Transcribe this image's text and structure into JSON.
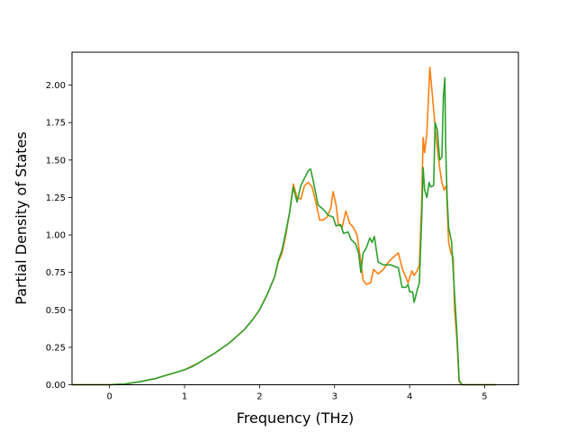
{
  "chart_data": {
    "type": "line",
    "title": "",
    "xlabel": "Frequency (THz)",
    "ylabel": "Partial Density of States",
    "xlim": [
      -0.5,
      5.45
    ],
    "ylim": [
      0,
      2.22
    ],
    "grid": false,
    "legend": "none",
    "x_ticks": [
      0,
      1,
      2,
      3,
      4,
      5
    ],
    "x_tick_labels": [
      "0",
      "1",
      "2",
      "3",
      "4",
      "5"
    ],
    "y_ticks": [
      0.0,
      0.25,
      0.5,
      0.75,
      1.0,
      1.25,
      1.5,
      1.75,
      2.0
    ],
    "y_tick_labels": [
      "0.00",
      "0.25",
      "0.50",
      "0.75",
      "1.00",
      "1.25",
      "1.50",
      "1.75",
      "2.00"
    ],
    "series": [
      {
        "color": "#ff7f0e",
        "points": [
          [
            -0.5,
            0
          ],
          [
            0,
            0
          ],
          [
            0.2,
            0.005
          ],
          [
            0.4,
            0.02
          ],
          [
            0.6,
            0.04
          ],
          [
            0.8,
            0.07
          ],
          [
            1.0,
            0.1
          ],
          [
            1.1,
            0.125
          ],
          [
            1.2,
            0.15
          ],
          [
            1.4,
            0.21
          ],
          [
            1.6,
            0.28
          ],
          [
            1.8,
            0.37
          ],
          [
            1.9,
            0.43
          ],
          [
            2.0,
            0.5
          ],
          [
            2.1,
            0.6
          ],
          [
            2.2,
            0.72
          ],
          [
            2.25,
            0.82
          ],
          [
            2.3,
            0.88
          ],
          [
            2.35,
            1.0
          ],
          [
            2.4,
            1.15
          ],
          [
            2.45,
            1.34
          ],
          [
            2.5,
            1.25
          ],
          [
            2.55,
            1.24
          ],
          [
            2.6,
            1.33
          ],
          [
            2.65,
            1.35
          ],
          [
            2.7,
            1.32
          ],
          [
            2.75,
            1.22
          ],
          [
            2.8,
            1.1
          ],
          [
            2.85,
            1.1
          ],
          [
            2.9,
            1.12
          ],
          [
            2.95,
            1.18
          ],
          [
            2.98,
            1.29
          ],
          [
            3.02,
            1.2
          ],
          [
            3.05,
            1.07
          ],
          [
            3.1,
            1.05
          ],
          [
            3.15,
            1.16
          ],
          [
            3.2,
            1.08
          ],
          [
            3.25,
            1.05
          ],
          [
            3.3,
            1.0
          ],
          [
            3.35,
            0.82
          ],
          [
            3.38,
            0.7
          ],
          [
            3.42,
            0.67
          ],
          [
            3.48,
            0.68
          ],
          [
            3.52,
            0.77
          ],
          [
            3.58,
            0.74
          ],
          [
            3.65,
            0.77
          ],
          [
            3.72,
            0.82
          ],
          [
            3.78,
            0.85
          ],
          [
            3.85,
            0.88
          ],
          [
            3.9,
            0.78
          ],
          [
            3.98,
            0.68
          ],
          [
            4.03,
            0.76
          ],
          [
            4.06,
            0.73
          ],
          [
            4.1,
            0.76
          ],
          [
            4.13,
            0.8
          ],
          [
            4.16,
            1.2
          ],
          [
            4.18,
            1.65
          ],
          [
            4.2,
            1.55
          ],
          [
            4.23,
            1.68
          ],
          [
            4.25,
            1.9
          ],
          [
            4.27,
            2.12
          ],
          [
            4.3,
            1.95
          ],
          [
            4.33,
            1.78
          ],
          [
            4.36,
            1.62
          ],
          [
            4.4,
            1.45
          ],
          [
            4.43,
            1.35
          ],
          [
            4.46,
            1.3
          ],
          [
            4.49,
            1.33
          ],
          [
            4.52,
            0.95
          ],
          [
            4.55,
            0.88
          ],
          [
            4.58,
            0.85
          ],
          [
            4.6,
            0.5
          ],
          [
            4.63,
            0.3
          ],
          [
            4.66,
            0.02
          ],
          [
            4.7,
            0
          ],
          [
            5.15,
            0
          ]
        ]
      },
      {
        "color": "#2ca02c",
        "points": [
          [
            -0.5,
            0
          ],
          [
            0,
            0
          ],
          [
            0.2,
            0.005
          ],
          [
            0.4,
            0.02
          ],
          [
            0.6,
            0.04
          ],
          [
            0.8,
            0.07
          ],
          [
            1.0,
            0.1
          ],
          [
            1.1,
            0.12
          ],
          [
            1.2,
            0.15
          ],
          [
            1.4,
            0.21
          ],
          [
            1.6,
            0.28
          ],
          [
            1.8,
            0.37
          ],
          [
            1.9,
            0.43
          ],
          [
            2.0,
            0.5
          ],
          [
            2.1,
            0.6
          ],
          [
            2.2,
            0.72
          ],
          [
            2.25,
            0.83
          ],
          [
            2.3,
            0.9
          ],
          [
            2.35,
            1.02
          ],
          [
            2.4,
            1.15
          ],
          [
            2.45,
            1.32
          ],
          [
            2.5,
            1.22
          ],
          [
            2.55,
            1.33
          ],
          [
            2.6,
            1.38
          ],
          [
            2.65,
            1.43
          ],
          [
            2.68,
            1.44
          ],
          [
            2.72,
            1.35
          ],
          [
            2.78,
            1.2
          ],
          [
            2.85,
            1.17
          ],
          [
            2.92,
            1.13
          ],
          [
            2.98,
            1.12
          ],
          [
            3.02,
            1.06
          ],
          [
            3.08,
            1.07
          ],
          [
            3.12,
            1.01
          ],
          [
            3.18,
            1.02
          ],
          [
            3.22,
            0.97
          ],
          [
            3.28,
            0.94
          ],
          [
            3.32,
            0.88
          ],
          [
            3.35,
            0.75
          ],
          [
            3.38,
            0.88
          ],
          [
            3.42,
            0.91
          ],
          [
            3.47,
            0.98
          ],
          [
            3.5,
            0.95
          ],
          [
            3.53,
            0.99
          ],
          [
            3.58,
            0.82
          ],
          [
            3.65,
            0.8
          ],
          [
            3.75,
            0.8
          ],
          [
            3.85,
            0.78
          ],
          [
            3.9,
            0.65
          ],
          [
            3.95,
            0.65
          ],
          [
            3.98,
            0.67
          ],
          [
            4.0,
            0.62
          ],
          [
            4.04,
            0.62
          ],
          [
            4.06,
            0.55
          ],
          [
            4.1,
            0.63
          ],
          [
            4.13,
            0.68
          ],
          [
            4.16,
            1.1
          ],
          [
            4.18,
            1.45
          ],
          [
            4.2,
            1.3
          ],
          [
            4.23,
            1.25
          ],
          [
            4.26,
            1.35
          ],
          [
            4.28,
            1.32
          ],
          [
            4.32,
            1.33
          ],
          [
            4.34,
            1.75
          ],
          [
            4.37,
            1.7
          ],
          [
            4.4,
            1.5
          ],
          [
            4.43,
            1.52
          ],
          [
            4.45,
            1.92
          ],
          [
            4.47,
            2.05
          ],
          [
            4.48,
            1.6
          ],
          [
            4.5,
            1.25
          ],
          [
            4.52,
            1.05
          ],
          [
            4.56,
            0.95
          ],
          [
            4.6,
            0.6
          ],
          [
            4.63,
            0.35
          ],
          [
            4.66,
            0.03
          ],
          [
            4.7,
            0
          ],
          [
            5.15,
            0
          ]
        ]
      }
    ]
  }
}
